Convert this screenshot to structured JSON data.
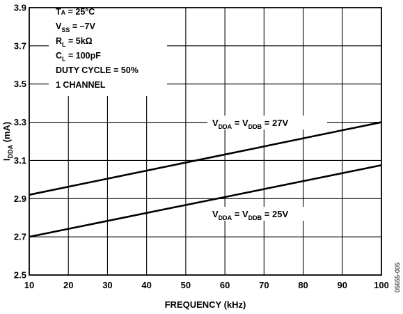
{
  "chart_data": {
    "type": "line",
    "xlabel": "FREQUENCY (kHz)",
    "ylabel": {
      "main": "I",
      "sub": "DDA",
      "unit": " (mA)"
    },
    "xlim": [
      10,
      100
    ],
    "ylim": [
      2.5,
      3.9
    ],
    "xticks": [
      10,
      20,
      30,
      40,
      50,
      60,
      70,
      80,
      90,
      100
    ],
    "yticks": [
      "2.5",
      "2.7",
      "2.9",
      "3.1",
      "3.3",
      "3.5",
      "3.7",
      "3.9"
    ],
    "grid": true,
    "conditions": [
      {
        "main": "T",
        "sub": "A",
        "rest": " = 25°C",
        "sub_small_caps": true
      },
      {
        "main": "V",
        "sub": "SS",
        "rest": " = –7V"
      },
      {
        "main": "R",
        "sub": "L",
        "rest": " = 5kΩ"
      },
      {
        "main": "C",
        "sub": "L",
        "rest": " = 100pF"
      },
      {
        "main": "DUTY CYCLE = 50%",
        "sub": "",
        "rest": ""
      },
      {
        "main": "1 CHANNEL",
        "sub": "",
        "rest": ""
      }
    ],
    "series": [
      {
        "label": {
          "v1": "V",
          "s1": "DDA",
          "eq": " = ",
          "v2": "V",
          "s2": "DDB",
          "rest": " = 27V"
        },
        "x": [
          10,
          100
        ],
        "y": [
          2.92,
          3.3
        ]
      },
      {
        "label": {
          "v1": "V",
          "s1": "DDA",
          "eq": " = ",
          "v2": "V",
          "s2": "DDB",
          "rest": " = 25V"
        },
        "x": [
          10,
          100
        ],
        "y": [
          2.7,
          3.075
        ]
      }
    ]
  },
  "figure_id": "05655-005"
}
